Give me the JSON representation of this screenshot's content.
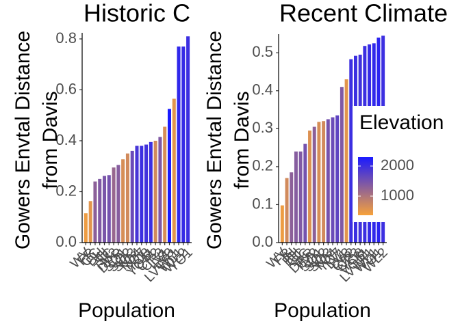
{
  "chart_data": [
    {
      "type": "bar",
      "title": "Historic C",
      "xlabel": "Population",
      "ylabel": [
        "Gowers Envtal Distance",
        "from Davis"
      ],
      "categories": [
        "WV",
        "FR",
        "CC",
        "BH",
        "IH",
        "SC",
        "TM2",
        "DPR",
        "SQ1",
        "SQ2",
        "SQ3",
        "YO4",
        "YO7",
        "YO8",
        "YO11",
        "CP2",
        "CP3",
        "LV1",
        "LV3",
        "LVTR1",
        "WL1",
        "WL2",
        "YO1"
      ],
      "values": [
        0.115,
        0.163,
        0.24,
        0.25,
        0.262,
        0.265,
        0.295,
        0.305,
        0.327,
        0.35,
        0.36,
        0.38,
        0.38,
        0.385,
        0.395,
        0.4,
        0.415,
        0.455,
        0.525,
        0.565,
        0.77,
        0.77,
        0.81
      ],
      "elevation": [
        450,
        550,
        1300,
        1400,
        1450,
        1500,
        1200,
        1350,
        650,
        700,
        1600,
        1900,
        2000,
        1950,
        2000,
        700,
        1400,
        650,
        2300,
        550,
        2100,
        2050,
        2000
      ],
      "ylim": [
        0,
        0.824
      ],
      "yticks": [
        {
          "value": 0,
          "label": "0.0"
        },
        0.2,
        0.4,
        0.6,
        0.8
      ]
    },
    {
      "type": "bar",
      "title": "Recent Climate",
      "xlabel": "Population",
      "ylabel": [
        "Gowers Envtal Distance",
        "from Davis"
      ],
      "categories": [
        "WV",
        "FR",
        "IH",
        "BH",
        "CC",
        "SC",
        "DPR",
        "TM2",
        "SQ1",
        "SQ2",
        "SQ3",
        "YO4",
        "YO7",
        "LV1",
        "LV3",
        "CP2",
        "CP3",
        "YO8",
        "YO11",
        "LVTR1",
        "WL1",
        "YO1",
        "WL2"
      ],
      "values": [
        0.098,
        0.17,
        0.185,
        0.24,
        0.24,
        0.26,
        0.295,
        0.305,
        0.318,
        0.32,
        0.325,
        0.33,
        0.335,
        0.41,
        0.43,
        0.483,
        0.492,
        0.495,
        0.518,
        0.522,
        0.525,
        0.54,
        0.545
      ],
      "elevation": [
        450,
        700,
        1300,
        1350,
        1400,
        1500,
        600,
        1300,
        650,
        700,
        1500,
        1600,
        1700,
        1400,
        550,
        2000,
        2000,
        1950,
        2000,
        2050,
        2100,
        2150,
        2000
      ],
      "ylim": [
        0,
        0.549
      ],
      "yticks": [
        {
          "value": 0,
          "label": "0.0"
        },
        0.1,
        0.2,
        0.3,
        0.4,
        0.5
      ],
      "legend": {
        "title": "Elevation",
        "ticks": [
          1000,
          2000
        ],
        "range": [
          364,
          2295
        ],
        "low": "#f7a23a",
        "high": "#1a1aff"
      }
    }
  ]
}
